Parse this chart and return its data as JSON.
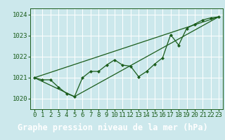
{
  "bg_color": "#cce8ec",
  "plot_bg_color": "#cce8ec",
  "grid_color": "#ffffff",
  "line_color": "#1a5c1a",
  "marker_color": "#1a5c1a",
  "label_bg_color": "#2d6e2d",
  "label_text_color": "#ffffff",
  "title": "Graphe pression niveau de la mer (hPa)",
  "xlim": [
    -0.5,
    23.5
  ],
  "ylim": [
    1019.5,
    1024.3
  ],
  "yticks": [
    1020,
    1021,
    1022,
    1023,
    1024
  ],
  "xticks": [
    0,
    1,
    2,
    3,
    4,
    5,
    6,
    7,
    8,
    9,
    10,
    11,
    12,
    13,
    14,
    15,
    16,
    17,
    18,
    19,
    20,
    21,
    22,
    23
  ],
  "series1_x": [
    0,
    1,
    2,
    3,
    4,
    5,
    6,
    7,
    8,
    9,
    10,
    11,
    12,
    13,
    14,
    15,
    16,
    17,
    18,
    19,
    20,
    21,
    22,
    23
  ],
  "series1_y": [
    1021.0,
    1020.9,
    1020.9,
    1020.55,
    1020.25,
    1020.1,
    1021.0,
    1021.3,
    1021.3,
    1021.6,
    1021.85,
    1021.6,
    1021.55,
    1021.05,
    1021.3,
    1021.65,
    1021.95,
    1023.05,
    1022.55,
    1023.35,
    1023.55,
    1023.75,
    1023.85,
    1023.9
  ],
  "series2_x": [
    0,
    23
  ],
  "series2_y": [
    1021.0,
    1023.9
  ],
  "series3_x": [
    0,
    5,
    23
  ],
  "series3_y": [
    1021.0,
    1020.1,
    1023.9
  ],
  "title_fontsize": 8.5,
  "tick_fontsize": 6.5,
  "marker_size": 2.2,
  "line_width": 0.9
}
